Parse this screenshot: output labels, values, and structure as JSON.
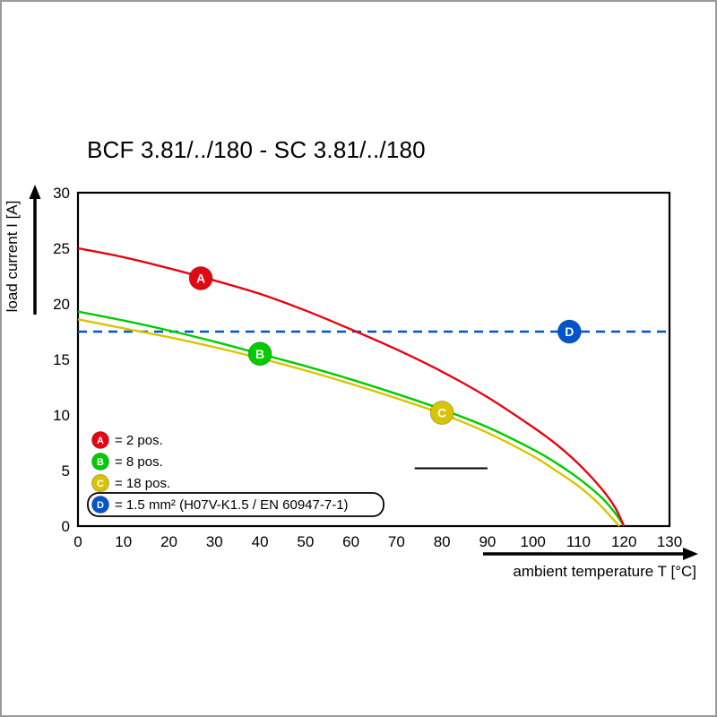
{
  "page": {
    "background": "#ffffff",
    "border_color": "#999999"
  },
  "chart_data": {
    "type": "line",
    "title": "BCF 3.81/../180 - SC 3.81/../180",
    "xlabel": "ambient temperature T [°C]",
    "ylabel": "load current I [A]",
    "xlim": [
      0,
      130
    ],
    "ylim": [
      0,
      30
    ],
    "xticks": [
      0,
      10,
      20,
      30,
      40,
      50,
      60,
      70,
      80,
      90,
      100,
      110,
      120,
      130
    ],
    "yticks": [
      0,
      5,
      10,
      15,
      20,
      25,
      30
    ],
    "grid": false,
    "legend_position": "bottom-left-inside",
    "series": [
      {
        "id": "A",
        "label": "= 2 pos.",
        "color": "#e30613",
        "dashed": false,
        "boxed_legend": false,
        "marker_at": [
          27,
          22.3
        ],
        "points": [
          [
            0,
            25
          ],
          [
            10,
            24.2
          ],
          [
            20,
            23.2
          ],
          [
            30,
            22.1
          ],
          [
            40,
            20.9
          ],
          [
            50,
            19.4
          ],
          [
            60,
            17.7
          ],
          [
            70,
            15.9
          ],
          [
            80,
            13.9
          ],
          [
            90,
            11.6
          ],
          [
            100,
            8.9
          ],
          [
            105,
            7.4
          ],
          [
            110,
            5.6
          ],
          [
            115,
            3.4
          ],
          [
            118,
            1.7
          ],
          [
            120,
            0
          ]
        ]
      },
      {
        "id": "B",
        "label": "= 8 pos.",
        "color": "#00cc00",
        "dashed": false,
        "boxed_legend": false,
        "marker_at": [
          40,
          15.5
        ],
        "points": [
          [
            0,
            19.3
          ],
          [
            10,
            18.5
          ],
          [
            20,
            17.6
          ],
          [
            30,
            16.6
          ],
          [
            40,
            15.5
          ],
          [
            50,
            14.4
          ],
          [
            60,
            13.2
          ],
          [
            70,
            11.9
          ],
          [
            80,
            10.5
          ],
          [
            90,
            8.9
          ],
          [
            100,
            6.9
          ],
          [
            105,
            5.7
          ],
          [
            110,
            4.3
          ],
          [
            115,
            2.6
          ],
          [
            118,
            1.2
          ],
          [
            120,
            0
          ]
        ]
      },
      {
        "id": "C",
        "label": "= 18 pos.",
        "color": "#d8c500",
        "dashed": false,
        "boxed_legend": false,
        "marker_at": [
          80,
          10.2
        ],
        "points": [
          [
            0,
            18.6
          ],
          [
            10,
            17.8
          ],
          [
            20,
            17.0
          ],
          [
            30,
            16.1
          ],
          [
            40,
            15.1
          ],
          [
            50,
            14.0
          ],
          [
            60,
            12.8
          ],
          [
            70,
            11.5
          ],
          [
            80,
            10.1
          ],
          [
            90,
            8.4
          ],
          [
            100,
            6.3
          ],
          [
            105,
            5.0
          ],
          [
            110,
            3.6
          ],
          [
            114,
            2.2
          ],
          [
            117,
            0.9
          ],
          [
            119,
            0
          ]
        ]
      },
      {
        "id": "D",
        "label": "= 1.5 mm² (H07V-K1.5 / EN 60947-7-1)",
        "color": "#0055cc",
        "dashed": true,
        "boxed_legend": true,
        "marker_at": [
          108,
          17.5
        ],
        "points": [
          [
            0,
            17.5
          ],
          [
            130,
            17.5
          ]
        ]
      }
    ],
    "annotations": [
      {
        "type": "segment",
        "x1": 74,
        "x2": 90,
        "y": 5.2,
        "color": "#000000"
      }
    ]
  }
}
